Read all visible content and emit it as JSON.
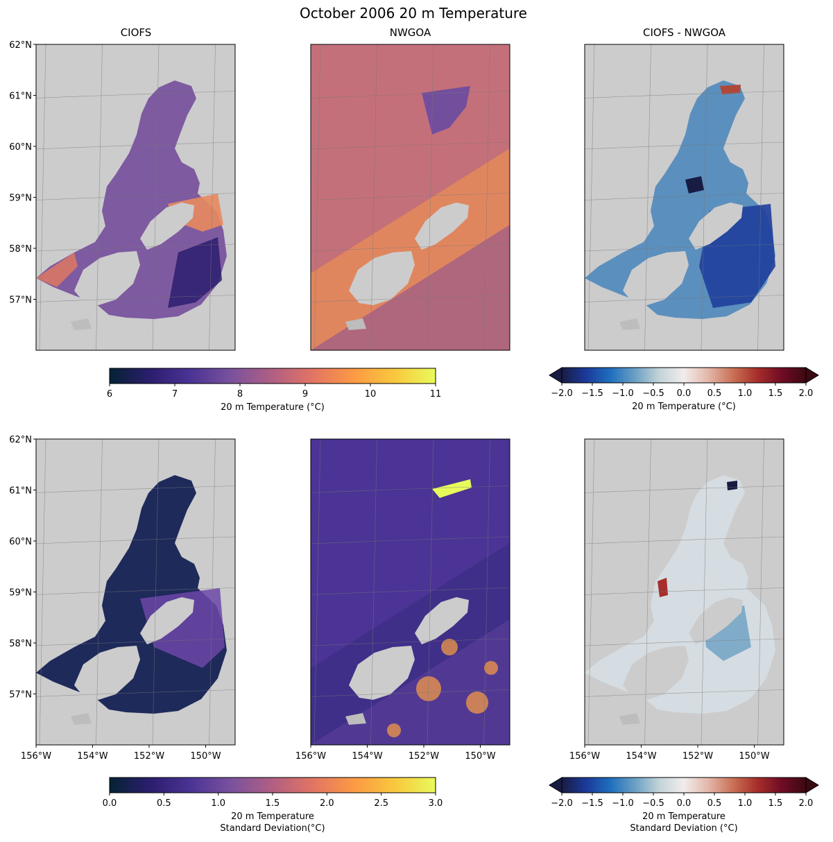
{
  "chart_data": {
    "type": "heatmap",
    "title": "October 2006 20 m Temperature",
    "panels": [
      {
        "id": "ciofs-mean",
        "title": "CIOFS",
        "row": 0,
        "col": 0,
        "field": "temp",
        "model": "ciofs",
        "lat_labels": [
          "62°N",
          "61°N",
          "60°N",
          "59°N",
          "58°N",
          "57°N"
        ],
        "lon_labels": []
      },
      {
        "id": "nwgoa-mean",
        "title": "NWGOA",
        "row": 0,
        "col": 1,
        "field": "temp",
        "model": "nwgoa",
        "lat_labels": [],
        "lon_labels": []
      },
      {
        "id": "diff-mean",
        "title": "CIOFS - NWGOA",
        "row": 0,
        "col": 2,
        "field": "tdiff",
        "model": "diff",
        "lat_labels": [],
        "lon_labels": []
      },
      {
        "id": "ciofs-std",
        "title": "",
        "row": 1,
        "col": 0,
        "field": "std",
        "model": "ciofs",
        "lat_labels": [
          "62°N",
          "61°N",
          "60°N",
          "59°N",
          "58°N",
          "57°N"
        ],
        "lon_labels": [
          "156°W",
          "154°W",
          "152°W",
          "150°W"
        ]
      },
      {
        "id": "nwgoa-std",
        "title": "",
        "row": 1,
        "col": 1,
        "field": "std",
        "model": "nwgoa",
        "lat_labels": [],
        "lon_labels": [
          "156°W",
          "154°W",
          "152°W",
          "150°W"
        ]
      },
      {
        "id": "diff-std",
        "title": "",
        "row": 1,
        "col": 2,
        "field": "sdiff",
        "model": "diff",
        "lat_labels": [],
        "lon_labels": [
          "156°W",
          "154°W",
          "152°W",
          "150°W"
        ]
      }
    ],
    "lat_range": [
      56.0,
      62.0
    ],
    "lon_range": [
      -156.0,
      -149.0
    ],
    "colorbars": [
      {
        "id": "temp",
        "label": "20 m Temperature (°C)",
        "label2": "",
        "range": [
          6,
          11
        ],
        "ticks": [
          "6",
          "7",
          "8",
          "9",
          "10",
          "11"
        ],
        "cmap": "thermal",
        "extend": "neither"
      },
      {
        "id": "tdiff",
        "label": "20 m Temperature (°C)",
        "label2": "",
        "range": [
          -2.0,
          2.0
        ],
        "ticks": [
          "−2.0",
          "−1.5",
          "−1.0",
          "−0.5",
          "0.0",
          "0.5",
          "1.0",
          "1.5",
          "2.0"
        ],
        "cmap": "balance",
        "extend": "both"
      },
      {
        "id": "std",
        "label": "20 m Temperature",
        "label2": "Standard Deviation(°C)",
        "range": [
          0.0,
          3.0
        ],
        "ticks": [
          "0.0",
          "0.5",
          "1.0",
          "1.5",
          "2.0",
          "2.5",
          "3.0"
        ],
        "cmap": "thermal",
        "extend": "neither"
      },
      {
        "id": "sdiff",
        "label": "20 m Temperature",
        "label2": "Standard Deviation (°C)",
        "range": [
          -2.0,
          2.0
        ],
        "ticks": [
          "−2.0",
          "−1.5",
          "−1.0",
          "−0.5",
          "0.0",
          "0.5",
          "1.0",
          "1.5",
          "2.0"
        ],
        "cmap": "balance",
        "extend": "both"
      }
    ],
    "colors": {
      "land": "#cccccc",
      "grid": "#777777",
      "thermal_low": "#042333",
      "thermal_mid": "#b15f82",
      "thermal_high": "#e8fa5b",
      "balance_low": "#181c43",
      "balance_mid": "#f1eceb",
      "balance_high": "#3c0912"
    }
  }
}
